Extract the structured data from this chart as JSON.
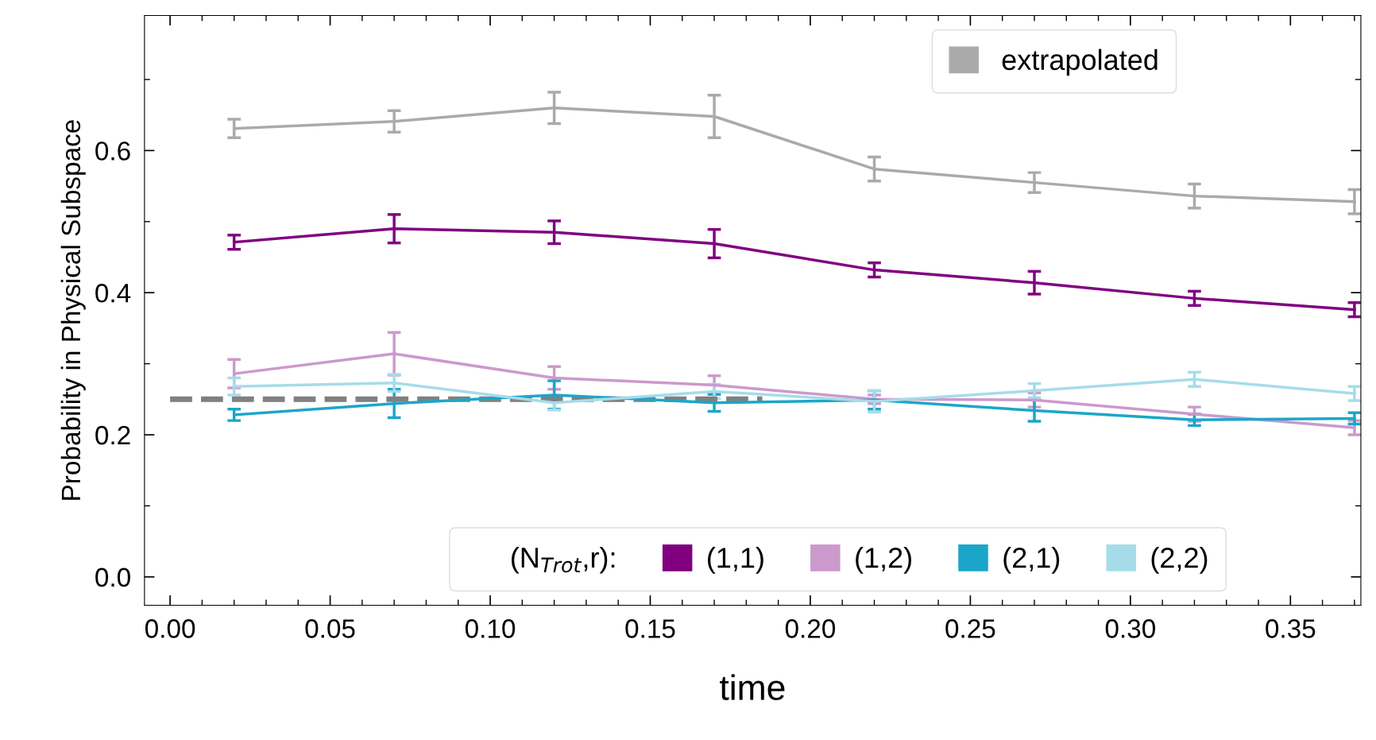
{
  "chart_data": {
    "type": "line",
    "xlabel": "time",
    "ylabel": "Probability in Physical Subspace",
    "legend_title": "(N$_{Trot}$,r):",
    "x": [
      0.02,
      0.07,
      0.12,
      0.17,
      0.22,
      0.27,
      0.32,
      0.37
    ],
    "series": [
      {
        "name": "extrapolated",
        "color": "#aaaaaa",
        "values": [
          0.631,
          0.641,
          0.66,
          0.648,
          0.574,
          0.555,
          0.536,
          0.528
        ],
        "errors": [
          0.013,
          0.015,
          0.022,
          0.03,
          0.017,
          0.014,
          0.017,
          0.017
        ]
      },
      {
        "name": "(1,1)",
        "color": "#800080",
        "values": [
          0.471,
          0.49,
          0.485,
          0.469,
          0.432,
          0.414,
          0.392,
          0.376
        ],
        "errors": [
          0.01,
          0.02,
          0.016,
          0.02,
          0.01,
          0.016,
          0.01,
          0.01
        ]
      },
      {
        "name": "(1,2)",
        "color": "#cc99cc",
        "values": [
          0.286,
          0.314,
          0.28,
          0.27,
          0.25,
          0.249,
          0.229,
          0.21
        ],
        "errors": [
          0.02,
          0.03,
          0.016,
          0.013,
          0.006,
          0.01,
          0.01,
          0.01
        ]
      },
      {
        "name": "(2,1)",
        "color": "#1ba6c9",
        "values": [
          0.228,
          0.244,
          0.256,
          0.245,
          0.249,
          0.234,
          0.221,
          0.223
        ],
        "errors": [
          0.008,
          0.02,
          0.02,
          0.012,
          0.013,
          0.015,
          0.008,
          0.008
        ]
      },
      {
        "name": "(2,2)",
        "color": "#a6dcea",
        "values": [
          0.268,
          0.273,
          0.245,
          0.261,
          0.247,
          0.262,
          0.278,
          0.258
        ],
        "errors": [
          0.012,
          0.012,
          0.01,
          0.01,
          0.015,
          0.01,
          0.01,
          0.01
        ]
      },
      {
        "type": "line",
        "color": "#808080",
        "line_style": "dashed",
        "x": [
          0.0,
          0.185
        ],
        "values": [
          0.25,
          0.25
        ]
      }
    ],
    "xlim": [
      -0.008,
      0.372
    ],
    "ylim": [
      -0.04,
      0.79
    ],
    "xticks": [
      {
        "value": 0.0,
        "label": "0.00"
      },
      0.05,
      {
        "value": 0.1,
        "label": "0.10"
      },
      0.15,
      {
        "value": 0.2,
        "label": "0.20"
      },
      0.25,
      {
        "value": 0.3,
        "label": "0.30"
      },
      0.35
    ],
    "yticks": [
      {
        "value": 0.0,
        "label": "0.0"
      },
      0.2,
      0.4,
      0.6
    ],
    "legend": "bottom",
    "grid": false
  }
}
